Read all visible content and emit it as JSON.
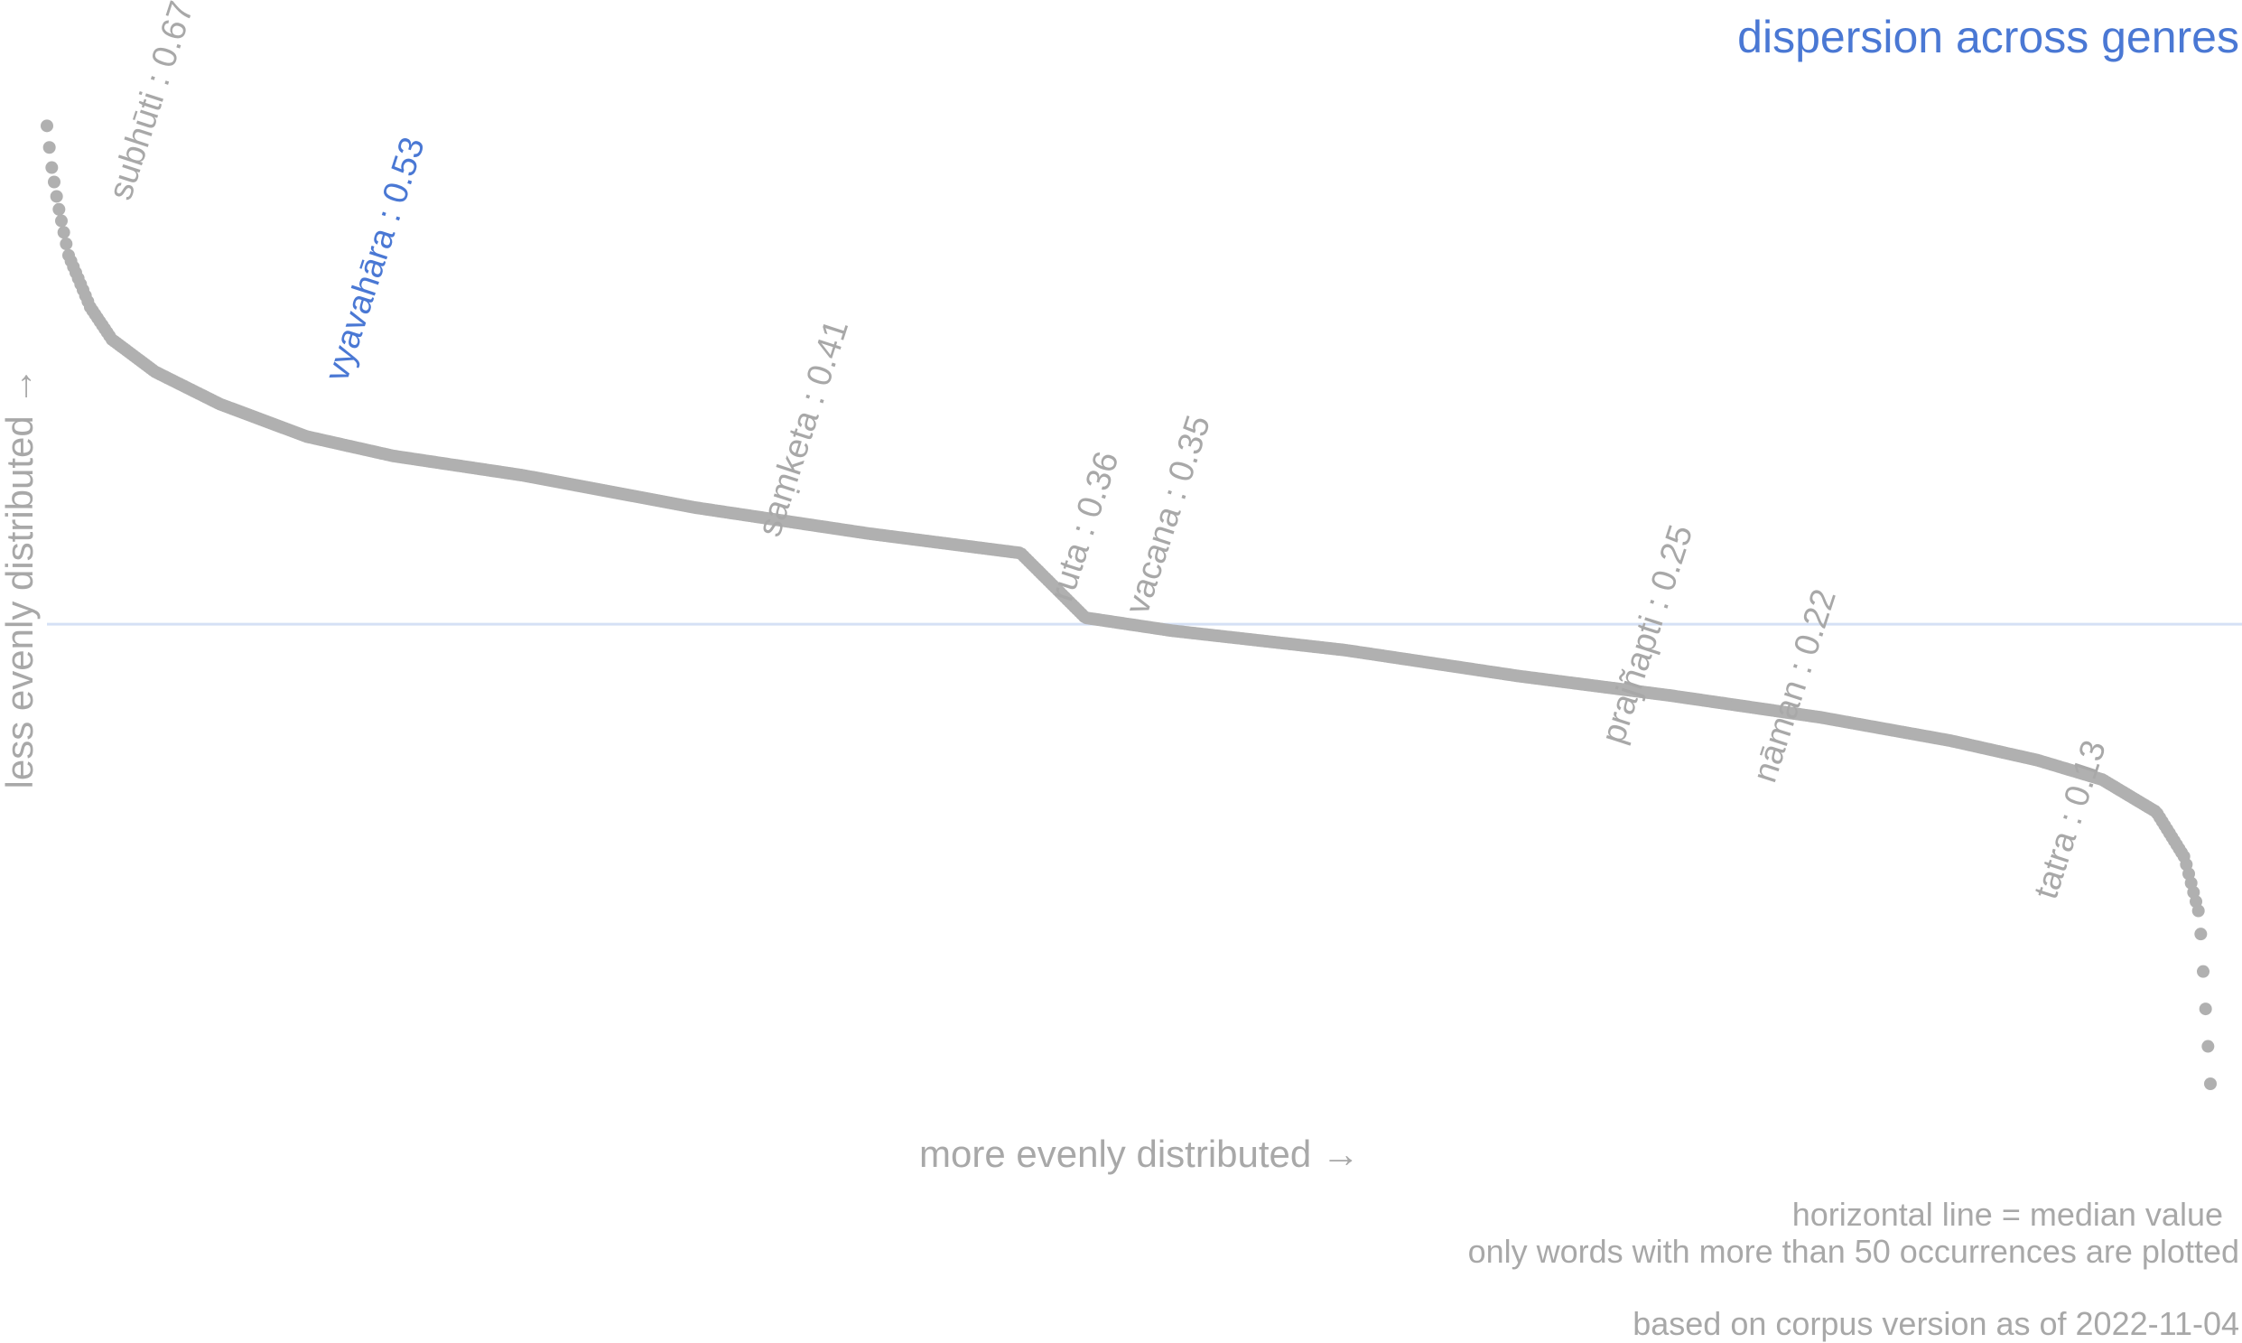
{
  "chart_data": {
    "type": "scatter",
    "title": "dispersion across genres",
    "xlabel": "more evenly distributed →",
    "ylabel": "less evenly distributed →",
    "ylim": [
      0.0,
      0.75
    ],
    "median": 0.355,
    "median_label": "horizontal line = median value",
    "note": "only words with more than 50 occurrences are plotted",
    "footer": "based on corpus version as of 2022-11-04",
    "curve": [
      [
        0.0,
        0.74
      ],
      [
        0.002,
        0.71
      ],
      [
        0.005,
        0.68
      ],
      [
        0.01,
        0.64
      ],
      [
        0.02,
        0.6
      ],
      [
        0.03,
        0.575
      ],
      [
        0.05,
        0.55
      ],
      [
        0.08,
        0.525
      ],
      [
        0.12,
        0.5
      ],
      [
        0.16,
        0.485
      ],
      [
        0.22,
        0.47
      ],
      [
        0.3,
        0.445
      ],
      [
        0.38,
        0.425
      ],
      [
        0.45,
        0.41
      ],
      [
        0.48,
        0.36
      ],
      [
        0.52,
        0.35
      ],
      [
        0.6,
        0.335
      ],
      [
        0.68,
        0.315
      ],
      [
        0.75,
        0.3
      ],
      [
        0.82,
        0.283
      ],
      [
        0.88,
        0.265
      ],
      [
        0.92,
        0.25
      ],
      [
        0.95,
        0.235
      ],
      [
        0.975,
        0.21
      ],
      [
        0.988,
        0.175
      ],
      [
        0.995,
        0.13
      ],
      [
        1.0,
        0.0
      ]
    ],
    "labeled_points": [
      {
        "x": 0.03,
        "y": 0.67,
        "text": "subhūti : 0.67",
        "highlight": false
      },
      {
        "x": 0.13,
        "y": 0.53,
        "text": "vyavahāra : 0.53",
        "highlight": true
      },
      {
        "x": 0.33,
        "y": 0.41,
        "text": "saṃketa : 0.41",
        "highlight": false
      },
      {
        "x": 0.465,
        "y": 0.36,
        "text": "ruta : 0.36",
        "highlight": false
      },
      {
        "x": 0.5,
        "y": 0.35,
        "text": "vacana : 0.35",
        "highlight": false
      },
      {
        "x": 0.72,
        "y": 0.25,
        "text": "prajñapti : 0.25",
        "highlight": false
      },
      {
        "x": 0.79,
        "y": 0.22,
        "text": "nāman : 0.22",
        "highlight": false
      },
      {
        "x": 0.92,
        "y": 0.13,
        "text": "tatra : 0.13",
        "highlight": false
      }
    ],
    "colors": {
      "points": "#b0b0b0",
      "median_line": "#d5e0f5",
      "highlight": "#4a78d4",
      "title": "#4a78d4",
      "text": "#a8a8a8"
    }
  }
}
